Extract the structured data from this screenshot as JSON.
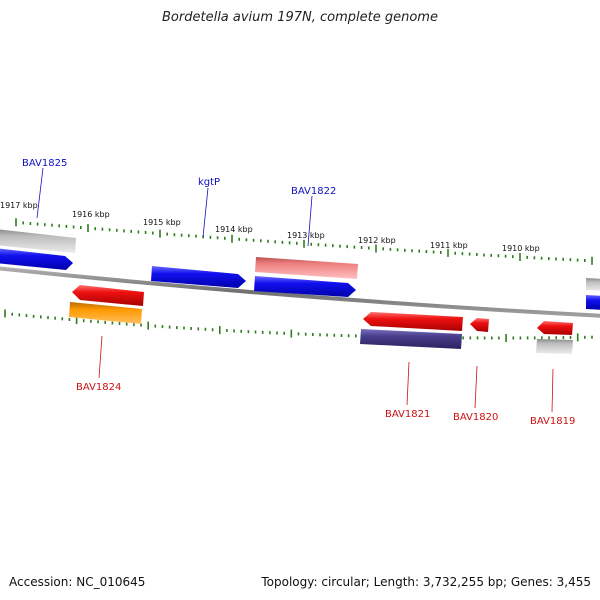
{
  "title": "Bordetella avium 197N, complete genome",
  "footer": {
    "accession": "Accession: NC_010645",
    "summary": "Topology: circular; Length: 3,732,255 bp; Genes: 3,455"
  },
  "colors": {
    "backbone": "#858585",
    "tick": "#2e7d1f",
    "forward_label": "#1010c0",
    "reverse_label": "#cc1111",
    "blue": "#1010ee",
    "red": "#ee1111",
    "pink": "#ee7f80",
    "gray": "#bdbdbd",
    "orange": "#ff9a00",
    "purple": "#4a3f8c"
  },
  "scale_labels": [
    "1917 kbp",
    "1916 kbp",
    "1915 kbp",
    "1914 kbp",
    "1913 kbp",
    "1912 kbp",
    "1911 kbp",
    "1910 kbp"
  ],
  "gene_labels": {
    "forward": [
      "BAV1825",
      "kgtP",
      "BAV1822"
    ],
    "reverse": [
      "BAV1824",
      "BAV1821",
      "BAV1820",
      "BAV1819"
    ]
  }
}
